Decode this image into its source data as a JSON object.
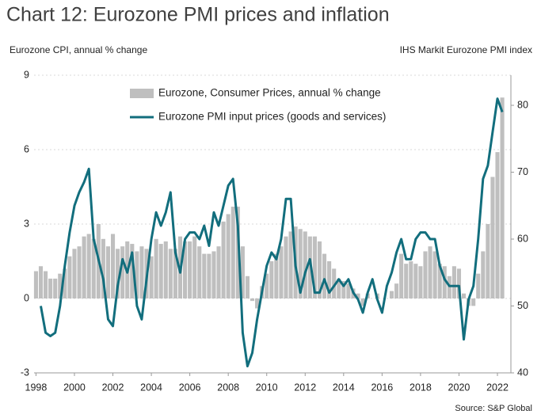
{
  "chart_data": {
    "type": "combo",
    "title": "Chart 12: Eurozone PMI prices and inflation",
    "y_label": "Eurozone CPI, annual % change",
    "y2_label": "IHS Markit Eurozone PMI index",
    "source": "Source: S&P Global",
    "x": [
      1998,
      1998.25,
      1998.5,
      1998.75,
      1999,
      1999.25,
      1999.5,
      1999.75,
      2000,
      2000.25,
      2000.5,
      2000.75,
      2001,
      2001.25,
      2001.5,
      2001.75,
      2002,
      2002.25,
      2002.5,
      2002.75,
      2003,
      2003.25,
      2003.5,
      2003.75,
      2004,
      2004.25,
      2004.5,
      2004.75,
      2005,
      2005.25,
      2005.5,
      2005.75,
      2006,
      2006.25,
      2006.5,
      2006.75,
      2007,
      2007.25,
      2007.5,
      2007.75,
      2008,
      2008.25,
      2008.5,
      2008.75,
      2009,
      2009.25,
      2009.5,
      2009.75,
      2010,
      2010.25,
      2010.5,
      2010.75,
      2011,
      2011.25,
      2011.5,
      2011.75,
      2012,
      2012.25,
      2012.5,
      2012.75,
      2013,
      2013.25,
      2013.5,
      2013.75,
      2014,
      2014.25,
      2014.5,
      2014.75,
      2015,
      2015.25,
      2015.5,
      2015.75,
      2016,
      2016.25,
      2016.5,
      2016.75,
      2017,
      2017.25,
      2017.5,
      2017.75,
      2018,
      2018.25,
      2018.5,
      2018.75,
      2019,
      2019.25,
      2019.5,
      2019.75,
      2020,
      2020.25,
      2020.5,
      2020.75,
      2021,
      2021.25,
      2021.5,
      2021.75,
      2022,
      2022.25
    ],
    "series": [
      {
        "name": "Eurozone, Consumer Prices, annual % change",
        "type": "bar",
        "color": "#bfbfbf",
        "values": [
          1.1,
          1.3,
          1.1,
          0.8,
          0.8,
          1.0,
          1.2,
          1.7,
          2.0,
          2.1,
          2.5,
          2.6,
          2.4,
          3.0,
          2.4,
          2.1,
          2.6,
          2.0,
          2.1,
          2.3,
          2.2,
          1.9,
          2.1,
          2.0,
          1.7,
          2.4,
          2.2,
          2.3,
          2.0,
          2.0,
          2.5,
          2.3,
          2.3,
          2.5,
          2.1,
          1.8,
          1.8,
          1.9,
          2.1,
          3.1,
          3.4,
          3.7,
          3.7,
          2.1,
          0.9,
          -0.1,
          -0.4,
          0.5,
          1.0,
          1.5,
          1.8,
          2.1,
          2.5,
          2.7,
          2.9,
          2.8,
          2.7,
          2.5,
          2.5,
          2.3,
          1.8,
          1.5,
          1.2,
          0.8,
          0.7,
          0.6,
          0.4,
          0.2,
          -0.3,
          0.2,
          0.0,
          0.2,
          0.0,
          0.0,
          0.3,
          0.6,
          1.8,
          1.4,
          1.5,
          1.4,
          1.3,
          1.9,
          2.1,
          1.9,
          1.4,
          1.3,
          0.9,
          1.3,
          1.2,
          0.2,
          -0.3,
          -0.3,
          1.0,
          1.9,
          3.0,
          4.9,
          5.9,
          8.1
        ]
      },
      {
        "name": "Eurozone PMI input prices (goods and services)",
        "type": "line",
        "axis": "y2",
        "color": "#126e7d",
        "values": [
          null,
          50,
          46,
          45.5,
          46,
          50,
          56,
          61,
          65,
          67,
          68.5,
          70.5,
          60,
          57,
          54,
          48,
          47,
          53,
          57,
          55,
          58,
          50,
          48,
          54,
          60,
          64,
          62,
          64,
          67,
          58,
          55,
          60,
          61,
          61,
          60,
          62,
          59,
          64,
          62,
          65,
          68,
          69,
          62,
          46,
          41,
          43,
          48,
          52,
          56,
          58,
          57,
          60,
          66,
          66,
          56,
          52,
          55,
          57,
          52,
          52,
          54,
          52,
          53,
          54,
          53,
          54,
          52,
          51,
          49,
          52,
          54,
          51,
          49,
          53,
          55,
          58,
          60,
          57,
          57,
          60,
          61,
          61,
          60,
          60,
          56,
          54,
          53,
          53,
          53,
          45,
          51,
          53,
          60,
          69,
          71,
          76,
          81,
          79
        ]
      }
    ],
    "xlim": [
      1997.9,
      2022.7
    ],
    "xticks": [
      1998,
      2000,
      2002,
      2004,
      2006,
      2008,
      2010,
      2012,
      2014,
      2016,
      2018,
      2020,
      2022
    ],
    "ylim": [
      -3,
      9
    ],
    "yticks": [
      -3,
      0,
      3,
      6,
      9
    ],
    "y2lim": [
      40,
      84.5
    ],
    "y2ticks": [
      40,
      50,
      60,
      70,
      80
    ],
    "grid": true
  }
}
